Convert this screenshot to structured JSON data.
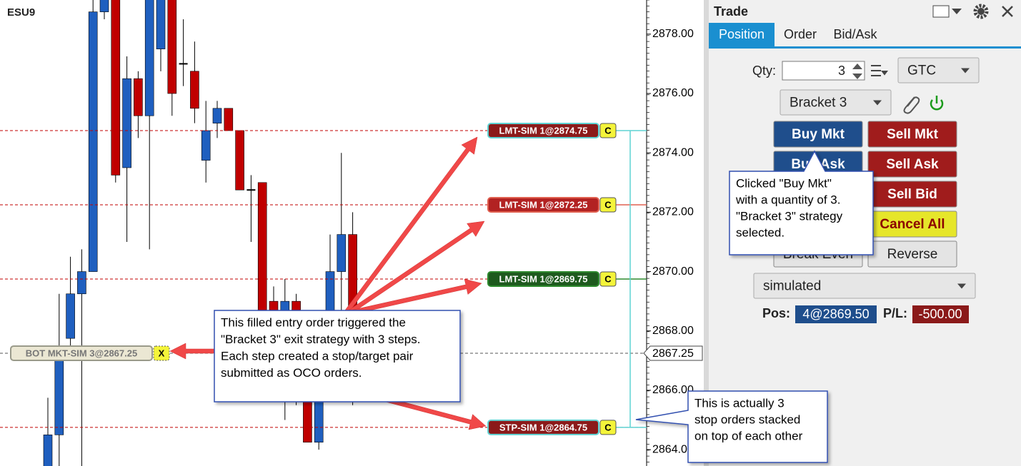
{
  "symbol": "ESU9",
  "chart": {
    "type": "candlestick",
    "up_color": "#1f5fbf",
    "down_color": "#c00000",
    "flat_color": "#000000",
    "ylim": [
      2863.45,
      2879.15
    ],
    "yticks": [
      {
        "value": 2878,
        "label": "2878.00"
      },
      {
        "value": 2876,
        "label": "2876.00"
      },
      {
        "value": 2874,
        "label": "2874.00"
      },
      {
        "value": 2872,
        "label": "2872.00"
      },
      {
        "value": 2870,
        "label": "2870.00"
      },
      {
        "value": 2868,
        "label": "2868.00"
      },
      {
        "value": 2866,
        "label": "2866.00"
      },
      {
        "value": 2864,
        "label": "2864.00"
      }
    ],
    "last_price": {
      "value": 2867.25,
      "label": "2867.25"
    },
    "candles": [
      {
        "open": 2863.25,
        "high": 2865.75,
        "low": 2863.0,
        "close": 2864.5
      },
      {
        "open": 2864.5,
        "high": 2869.25,
        "low": 2863.0,
        "close": 2867.0
      },
      {
        "open": 2867.75,
        "high": 2870.5,
        "low": 2867.25,
        "close": 2869.25
      },
      {
        "open": 2869.25,
        "high": 2870.75,
        "low": 2863.0,
        "close": 2870.0
      },
      {
        "open": 2870.0,
        "high": 2879.5,
        "low": 2870.0,
        "close": 2878.75
      },
      {
        "open": 2878.75,
        "high": 2879.75,
        "low": 2878.5,
        "close": 2879.25
      },
      {
        "open": 2879.5,
        "high": 2879.75,
        "low": 2873.0,
        "close": 2873.25
      },
      {
        "open": 2873.5,
        "high": 2877.25,
        "low": 2871.0,
        "close": 2876.5
      },
      {
        "open": 2876.5,
        "high": 2876.75,
        "low": 2874.5,
        "close": 2875.25
      },
      {
        "open": 2875.25,
        "high": 2879.75,
        "low": 2870.75,
        "close": 2879.5
      },
      {
        "open": 2877.5,
        "high": 2879.75,
        "low": 2876.75,
        "close": 2879.5
      },
      {
        "open": 2879.5,
        "high": 2879.75,
        "low": 2875.25,
        "close": 2876.0
      },
      {
        "open": 2877.0,
        "high": 2878.5,
        "low": 2876.25,
        "close": 2877.0
      },
      {
        "open": 2876.75,
        "high": 2877.75,
        "low": 2875.0,
        "close": 2875.5
      },
      {
        "open": 2873.75,
        "high": 2875.75,
        "low": 2873.0,
        "close": 2874.75
      },
      {
        "open": 2875.0,
        "high": 2875.75,
        "low": 2874.5,
        "close": 2875.5
      },
      {
        "open": 2875.5,
        "high": 2875.5,
        "low": 2874.75,
        "close": 2874.75
      },
      {
        "open": 2874.75,
        "high": 2874.75,
        "low": 2872.75,
        "close": 2872.75
      },
      {
        "open": 2872.75,
        "high": 2873.25,
        "low": 2871.0,
        "close": 2872.75
      },
      {
        "open": 2873.0,
        "high": 2873.0,
        "low": 2866.75,
        "close": 2867.0
      },
      {
        "open": 2869.0,
        "high": 2869.5,
        "low": 2866.5,
        "close": 2867.0
      },
      {
        "open": 2866.75,
        "high": 2869.75,
        "low": 2865.0,
        "close": 2869.0
      },
      {
        "open": 2869.0,
        "high": 2869.25,
        "low": 2865.5,
        "close": 2865.75
      },
      {
        "open": 2865.75,
        "high": 2866.0,
        "low": 2864.25,
        "close": 2864.25
      },
      {
        "open": 2864.25,
        "high": 2868.0,
        "low": 2864.0,
        "close": 2867.5
      },
      {
        "open": 2867.5,
        "high": 2871.25,
        "low": 2867.0,
        "close": 2870.0
      },
      {
        "open": 2870.0,
        "high": 2874.0,
        "low": 2868.5,
        "close": 2871.25
      },
      {
        "open": 2871.25,
        "high": 2872.0,
        "low": 2865.5,
        "close": 2866.5
      }
    ],
    "orders": [
      {
        "label": "LMT-SIM 1@2874.75",
        "price": 2874.75,
        "button": "C",
        "color": "#8b1a1a",
        "border_color": "#5fd3d3"
      },
      {
        "label": "LMT-SIM 1@2872.25",
        "price": 2872.25,
        "button": "C",
        "color": "#b22222",
        "border_color": "#e06050"
      },
      {
        "label": "LMT-SIM 1@2869.75",
        "price": 2869.75,
        "button": "C",
        "color": "#1e5a1e",
        "border_color": "#2e8a2e"
      },
      {
        "label": "STP-SIM 1@2864.75",
        "price": 2864.75,
        "button": "C",
        "color": "#8b1a1a",
        "border_color": "#5fd3d3"
      }
    ],
    "fill": {
      "label": "BOT MKT-SIM 3@2867.25",
      "price": 2867.25,
      "button": "X",
      "color": "#ebe7d3",
      "border_color": "#9a9a8a"
    }
  },
  "callouts": [
    {
      "lines": [
        "This filled entry order triggered the",
        "\"Bracket 3\" exit strategy with 3 steps.",
        "Each step created a stop/target pair",
        "submitted as OCO orders."
      ]
    },
    {
      "lines": [
        "Clicked \"Buy Mkt\"",
        "with a quantity of 3.",
        "\"Bracket 3\" strategy",
        "selected."
      ]
    },
    {
      "lines": [
        "This is actually 3",
        "stop orders stacked",
        "on top of each other"
      ]
    }
  ],
  "trade_panel": {
    "title": "Trade",
    "tabs": [
      "Position",
      "Order",
      "Bid/Ask"
    ],
    "qty_label": "Qty:",
    "qty": 3,
    "tif": "GTC",
    "strategy": "Bracket 3",
    "buttons": [
      [
        "Buy Mkt",
        "Sell Mkt"
      ],
      [
        "Buy Ask",
        "Sell Ask"
      ],
      [
        null,
        "Sell Bid"
      ],
      [
        null,
        "Cancel All"
      ],
      [
        "Break Even",
        "Reverse"
      ]
    ],
    "account": "simulated",
    "pos_label": "Pos:",
    "pos": "4@2869.50",
    "pl_label": "P/L:",
    "pl": -500.0,
    "pl_label_value": "-500.00"
  }
}
